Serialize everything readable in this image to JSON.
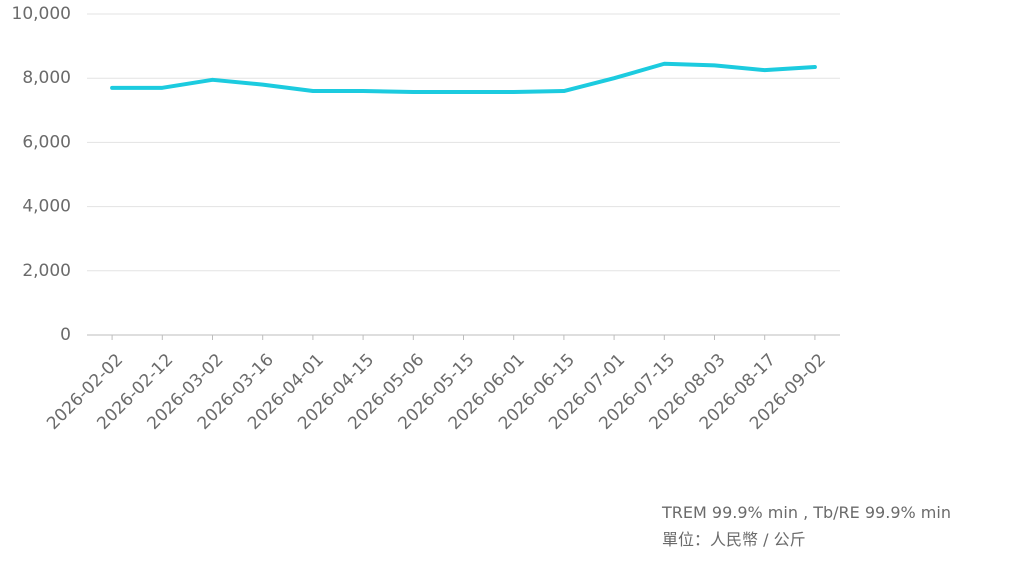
{
  "chart_data": {
    "type": "line",
    "categories": [
      "2026-02-02",
      "2026-02-12",
      "2026-03-02",
      "2026-03-16",
      "2026-04-01",
      "2026-04-15",
      "2026-05-06",
      "2026-05-15",
      "2026-06-01",
      "2026-06-15",
      "2026-07-01",
      "2026-07-15",
      "2026-08-03",
      "2026-08-17",
      "2026-09-02"
    ],
    "values": [
      7700,
      7700,
      7950,
      7800,
      7600,
      7600,
      7570,
      7570,
      7570,
      7600,
      8000,
      8450,
      8400,
      8250,
      8350
    ],
    "color": "#1ccbdf",
    "ylim": [
      0,
      10000
    ],
    "yticks": [
      0,
      {
        "value": 2000,
        "label": "2,000"
      },
      {
        "value": 4000,
        "label": "4,000"
      },
      {
        "value": 6000,
        "label": "6,000"
      },
      {
        "value": 8000,
        "label": "8,000"
      },
      {
        "value": 10000,
        "label": "10,000"
      }
    ],
    "grid": true,
    "notes": [
      "TREM 99.9% min , Tb/RE 99.9% min",
      "單位：人民幣 / 公斤"
    ]
  }
}
